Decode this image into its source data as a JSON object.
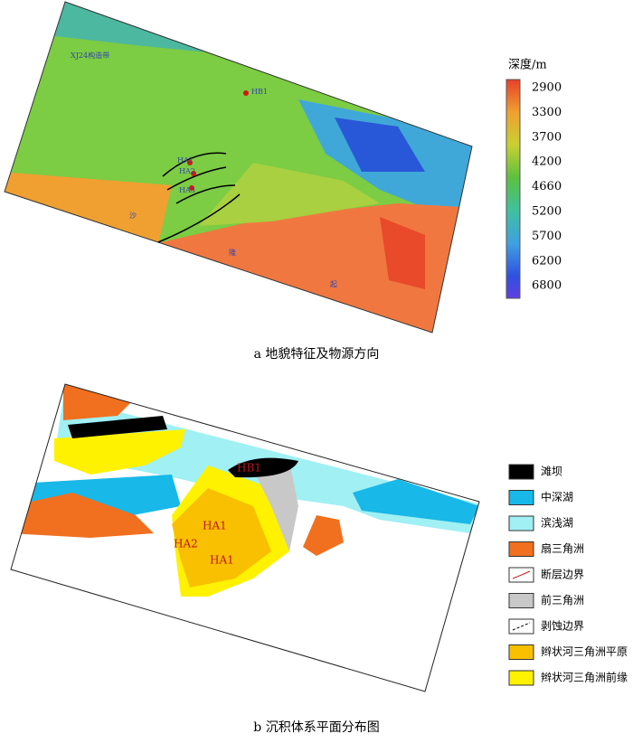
{
  "map_a": {
    "labels": [
      "XJ24构造带",
      "HB1",
      "HA1",
      "HA2",
      "HA3",
      "沙",
      "隆",
      "起"
    ],
    "colorbar": {
      "title": "深度/m",
      "ticks": [
        2900,
        3300,
        3700,
        4200,
        4660,
        5200,
        5700,
        6200,
        6800
      ]
    },
    "caption": "a 地貌特征及物源方向"
  },
  "map_b": {
    "labels": [
      "HB1",
      "HA1",
      "HA2",
      "HA1"
    ],
    "legend": [
      "滩坝",
      "中深湖",
      "滨浅湖",
      "扇三角洲",
      "断层边界",
      "前三角洲",
      "剥蚀边界",
      "辫状河三角洲平原",
      "辫状河三角洲前缘"
    ],
    "caption": "b 沉积体系平面分布图"
  }
}
